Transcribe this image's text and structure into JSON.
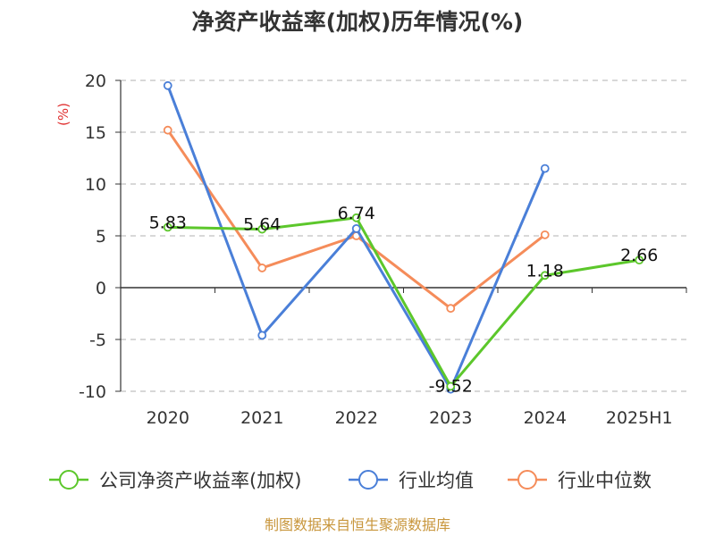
{
  "chart_data": {
    "type": "line",
    "title": "净资产收益率(加权)历年情况(%)",
    "ylabel": "(%)",
    "xlabel": "",
    "categories": [
      "2020",
      "2021",
      "2022",
      "2023",
      "2024",
      "2025H1"
    ],
    "ylim": [
      -10,
      20
    ],
    "yticks": [
      20,
      15,
      10,
      5,
      0,
      -5,
      -10
    ],
    "grid": true,
    "legend_position": "bottom",
    "series": [
      {
        "name": "公司净资产收益率(加权)",
        "color": "#5cc72b",
        "values": [
          5.83,
          5.64,
          6.74,
          -9.52,
          1.18,
          2.66
        ],
        "labels": [
          "5.83",
          "5.64",
          "6.74",
          "-9.52",
          "1.18",
          "2.66"
        ]
      },
      {
        "name": "行业均值",
        "color": "#4a7fd8",
        "values": [
          19.5,
          -4.6,
          5.7,
          -9.8,
          11.5,
          null
        ]
      },
      {
        "name": "行业中位数",
        "color": "#f58c5a",
        "values": [
          15.2,
          1.9,
          5.0,
          -2.0,
          5.1,
          null
        ]
      }
    ]
  },
  "source": "制图数据来自恒生聚源数据库"
}
